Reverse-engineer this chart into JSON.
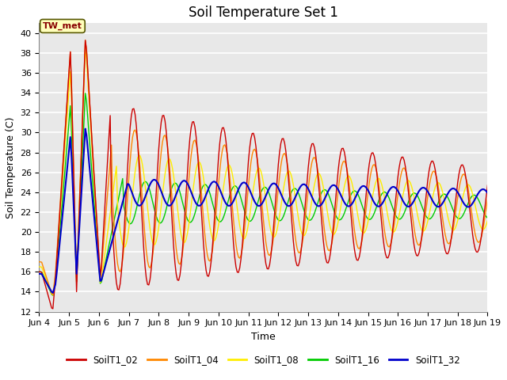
{
  "title": "Soil Temperature Set 1",
  "xlabel": "Time",
  "ylabel": "Soil Temperature (C)",
  "ylim": [
    12,
    41
  ],
  "annotation": "TW_met",
  "legend_labels": [
    "SoilT1_02",
    "SoilT1_04",
    "SoilT1_08",
    "SoilT1_16",
    "SoilT1_32"
  ],
  "colors": [
    "#cc0000",
    "#ff8800",
    "#ffee00",
    "#00cc00",
    "#0000cc"
  ],
  "xtick_labels": [
    "Jun 4",
    "Jun 5",
    "Jun 6",
    "Jun 7",
    "Jun 8",
    "Jun 9",
    "Jun 10",
    "Jun 11",
    "Jun 12",
    "Jun 13",
    "Jun 14",
    "Jun 15",
    "Jun 16",
    "Jun 17",
    "Jun 18",
    "Jun 19"
  ],
  "background_color": "#e8e8e8",
  "grid_color": "#ffffff",
  "title_fontsize": 12,
  "axis_fontsize": 9,
  "tick_fontsize": 8
}
